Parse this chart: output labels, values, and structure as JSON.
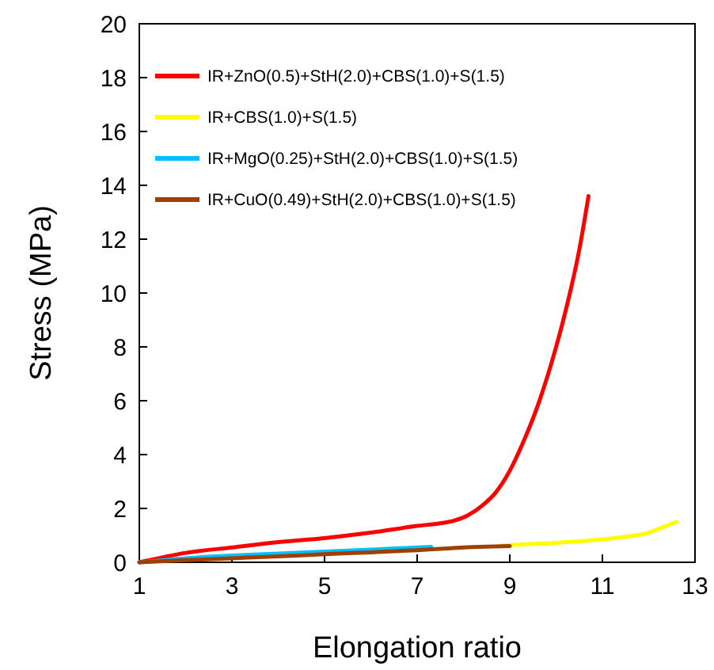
{
  "chart_data": {
    "type": "line",
    "xlabel": "Elongation ratio",
    "ylabel": "Stress (MPa)",
    "xlim": [
      1,
      13
    ],
    "ylim": [
      0,
      20
    ],
    "xticks": [
      1,
      3,
      5,
      7,
      9,
      11,
      13
    ],
    "yticks": [
      0,
      2,
      4,
      6,
      8,
      10,
      12,
      14,
      16,
      18,
      20
    ],
    "grid": false,
    "legend": "top left",
    "line_style": "solid",
    "series": [
      {
        "name": "IR+ZnO(0.5)+StH(2.0)+CBS(1.0)+S(1.5)",
        "color": "#ff0000",
        "x": [
          1,
          2,
          3,
          4,
          5,
          6,
          7,
          7.5,
          7.8,
          8.1,
          8.4,
          8.7,
          9,
          9.3,
          9.6,
          9.9,
          10.2,
          10.5,
          10.7
        ],
        "values": [
          0,
          0.35,
          0.55,
          0.75,
          0.9,
          1.1,
          1.35,
          1.45,
          1.55,
          1.75,
          2.1,
          2.6,
          3.4,
          4.5,
          5.8,
          7.4,
          9.3,
          11.6,
          13.6
        ]
      },
      {
        "name": "IR+CBS(1.0)+S(1.5)",
        "color": "#ffff00",
        "x": [
          8.8,
          9,
          10,
          11,
          11.5,
          12,
          12.3,
          12.6
        ],
        "values": [
          0.62,
          0.64,
          0.72,
          0.85,
          0.95,
          1.1,
          1.3,
          1.5
        ]
      },
      {
        "name": "IR+MgO(0.25)+StH(2.0)+CBS(1.0)+S(1.5)",
        "color": "#00c0ff",
        "x": [
          1,
          2,
          3,
          4,
          5,
          6,
          7,
          7.3
        ],
        "values": [
          0,
          0.15,
          0.25,
          0.32,
          0.4,
          0.47,
          0.55,
          0.57
        ]
      },
      {
        "name": "IR+CuO(0.49)+StH(2.0)+CBS(1.0)+S(1.5)",
        "color": "#a04000",
        "x": [
          1,
          2,
          3,
          4,
          5,
          6,
          7,
          7.5,
          8,
          8.5,
          9
        ],
        "values": [
          0,
          0.08,
          0.15,
          0.22,
          0.3,
          0.37,
          0.45,
          0.5,
          0.55,
          0.58,
          0.6
        ]
      }
    ]
  }
}
